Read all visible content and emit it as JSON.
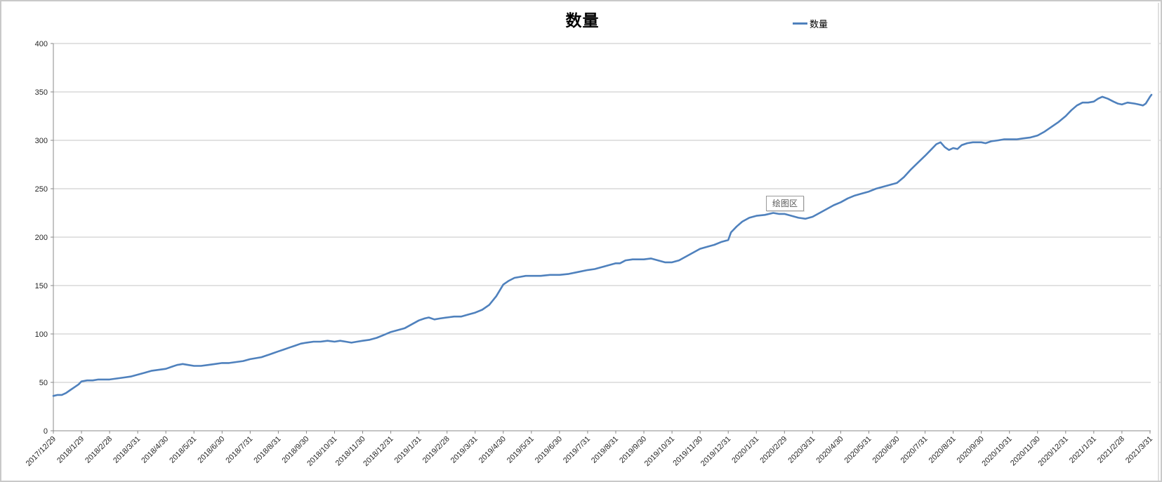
{
  "header": {
    "title": "数量"
  },
  "legend": {
    "label": "数量"
  },
  "tooltip": {
    "label": "绘图区"
  },
  "colors": {
    "line": "#4f81bd",
    "gridline": "#c6c6c6",
    "axis": "#898989",
    "tick_text": "#262626",
    "border": "#c9c9c9",
    "tooltip_text": "#595959"
  },
  "chart_data": {
    "type": "line",
    "title": "数量",
    "legend_entries": [
      "数量"
    ],
    "legend_position": "top-right",
    "grid": true,
    "ylim": [
      0,
      400
    ],
    "y_ticks": [
      0,
      50,
      100,
      150,
      200,
      250,
      300,
      350,
      400
    ],
    "x_tick_labels": [
      "2017/12/29",
      "2018/1/29",
      "2018/2/28",
      "2018/3/31",
      "2018/4/30",
      "2018/5/31",
      "2018/6/30",
      "2018/7/31",
      "2018/8/31",
      "2018/9/30",
      "2018/10/31",
      "2018/11/30",
      "2018/12/31",
      "2019/1/31",
      "2019/2/28",
      "2019/3/31",
      "2019/4/30",
      "2019/5/31",
      "2019/6/30",
      "2019/7/31",
      "2019/8/31",
      "2019/9/30",
      "2019/10/31",
      "2019/11/30",
      "2019/12/31",
      "2020/1/31",
      "2020/2/29",
      "2020/3/31",
      "2020/4/30",
      "2020/5/31",
      "2020/6/30",
      "2020/7/31",
      "2020/8/31",
      "2020/9/30",
      "2020/10/31",
      "2020/11/30",
      "2020/12/31",
      "2021/1/31",
      "2021/2/28",
      "2021/3/31"
    ],
    "series": [
      {
        "name": "数量",
        "monthly_values": [
          36,
          51,
          53,
          58,
          64,
          67,
          70,
          74,
          82,
          91,
          92,
          93,
          102,
          114,
          117,
          122,
          151,
          160,
          161,
          166,
          173,
          177,
          174,
          188,
          197,
          222,
          224,
          221,
          236,
          247,
          256,
          284,
          292,
          298,
          301,
          305,
          325,
          340,
          337,
          345
        ],
        "sampled_points": [
          [
            0,
            36
          ],
          [
            0.15,
            37
          ],
          [
            0.3,
            37
          ],
          [
            0.45,
            39
          ],
          [
            0.6,
            42
          ],
          [
            0.75,
            45
          ],
          [
            0.9,
            48
          ],
          [
            1,
            51
          ],
          [
            1.2,
            52
          ],
          [
            1.4,
            52
          ],
          [
            1.6,
            53
          ],
          [
            1.8,
            53
          ],
          [
            2,
            53
          ],
          [
            2.25,
            54
          ],
          [
            2.5,
            55
          ],
          [
            2.75,
            56
          ],
          [
            3,
            58
          ],
          [
            3.25,
            60
          ],
          [
            3.5,
            62
          ],
          [
            3.75,
            63
          ],
          [
            4,
            64
          ],
          [
            4.2,
            66
          ],
          [
            4.4,
            68
          ],
          [
            4.6,
            69
          ],
          [
            4.8,
            68
          ],
          [
            5,
            67
          ],
          [
            5.25,
            67
          ],
          [
            5.5,
            68
          ],
          [
            5.75,
            69
          ],
          [
            6,
            70
          ],
          [
            6.25,
            70
          ],
          [
            6.5,
            71
          ],
          [
            6.75,
            72
          ],
          [
            7,
            74
          ],
          [
            7.2,
            75
          ],
          [
            7.4,
            76
          ],
          [
            7.6,
            78
          ],
          [
            7.8,
            80
          ],
          [
            8,
            82
          ],
          [
            8.2,
            84
          ],
          [
            8.4,
            86
          ],
          [
            8.6,
            88
          ],
          [
            8.8,
            90
          ],
          [
            9,
            91
          ],
          [
            9.25,
            92
          ],
          [
            9.5,
            92
          ],
          [
            9.75,
            93
          ],
          [
            10,
            92
          ],
          [
            10.2,
            93
          ],
          [
            10.4,
            92
          ],
          [
            10.6,
            91
          ],
          [
            10.8,
            92
          ],
          [
            11,
            93
          ],
          [
            11.25,
            94
          ],
          [
            11.5,
            96
          ],
          [
            11.75,
            99
          ],
          [
            12,
            102
          ],
          [
            12.25,
            104
          ],
          [
            12.5,
            106
          ],
          [
            12.75,
            110
          ],
          [
            13,
            114
          ],
          [
            13.2,
            116
          ],
          [
            13.35,
            117
          ],
          [
            13.55,
            115
          ],
          [
            13.75,
            116
          ],
          [
            14,
            117
          ],
          [
            14.25,
            118
          ],
          [
            14.5,
            118
          ],
          [
            14.75,
            120
          ],
          [
            15,
            122
          ],
          [
            15.25,
            125
          ],
          [
            15.5,
            130
          ],
          [
            15.75,
            139
          ],
          [
            16,
            151
          ],
          [
            16.2,
            155
          ],
          [
            16.4,
            158
          ],
          [
            16.6,
            159
          ],
          [
            16.8,
            160
          ],
          [
            17,
            160
          ],
          [
            17.33,
            160
          ],
          [
            17.66,
            161
          ],
          [
            18,
            161
          ],
          [
            18.33,
            162
          ],
          [
            18.66,
            164
          ],
          [
            19,
            166
          ],
          [
            19.25,
            167
          ],
          [
            19.5,
            169
          ],
          [
            19.75,
            171
          ],
          [
            20,
            173
          ],
          [
            20.15,
            173
          ],
          [
            20.35,
            176
          ],
          [
            20.6,
            177
          ],
          [
            20.8,
            177
          ],
          [
            21,
            177
          ],
          [
            21.25,
            178
          ],
          [
            21.5,
            176
          ],
          [
            21.75,
            174
          ],
          [
            22,
            174
          ],
          [
            22.25,
            176
          ],
          [
            22.5,
            180
          ],
          [
            22.75,
            184
          ],
          [
            23,
            188
          ],
          [
            23.25,
            190
          ],
          [
            23.5,
            192
          ],
          [
            23.75,
            195
          ],
          [
            24,
            197
          ],
          [
            24.1,
            205
          ],
          [
            24.3,
            211
          ],
          [
            24.5,
            216
          ],
          [
            24.75,
            220
          ],
          [
            25,
            222
          ],
          [
            25.3,
            223
          ],
          [
            25.6,
            225
          ],
          [
            25.8,
            224
          ],
          [
            26,
            224
          ],
          [
            26.25,
            222
          ],
          [
            26.5,
            220
          ],
          [
            26.75,
            219
          ],
          [
            27,
            221
          ],
          [
            27.25,
            225
          ],
          [
            27.5,
            229
          ],
          [
            27.75,
            233
          ],
          [
            28,
            236
          ],
          [
            28.25,
            240
          ],
          [
            28.5,
            243
          ],
          [
            28.75,
            245
          ],
          [
            29,
            247
          ],
          [
            29.25,
            250
          ],
          [
            29.5,
            252
          ],
          [
            29.75,
            254
          ],
          [
            30,
            256
          ],
          [
            30.25,
            262
          ],
          [
            30.5,
            270
          ],
          [
            30.75,
            277
          ],
          [
            31,
            284
          ],
          [
            31.2,
            290
          ],
          [
            31.4,
            296
          ],
          [
            31.55,
            298
          ],
          [
            31.7,
            293
          ],
          [
            31.85,
            290
          ],
          [
            32,
            292
          ],
          [
            32.15,
            291
          ],
          [
            32.3,
            295
          ],
          [
            32.5,
            297
          ],
          [
            32.7,
            298
          ],
          [
            33,
            298
          ],
          [
            33.15,
            297
          ],
          [
            33.35,
            299
          ],
          [
            33.6,
            300
          ],
          [
            33.8,
            301
          ],
          [
            34,
            301
          ],
          [
            34.25,
            301
          ],
          [
            34.5,
            302
          ],
          [
            34.75,
            303
          ],
          [
            35,
            305
          ],
          [
            35.25,
            309
          ],
          [
            35.5,
            314
          ],
          [
            35.75,
            319
          ],
          [
            36,
            325
          ],
          [
            36.2,
            331
          ],
          [
            36.4,
            336
          ],
          [
            36.6,
            339
          ],
          [
            36.8,
            339
          ],
          [
            37,
            340
          ],
          [
            37.15,
            343
          ],
          [
            37.3,
            345
          ],
          [
            37.5,
            343
          ],
          [
            37.7,
            340
          ],
          [
            37.85,
            338
          ],
          [
            38,
            337
          ],
          [
            38.2,
            339
          ],
          [
            38.45,
            338
          ],
          [
            38.6,
            337
          ],
          [
            38.75,
            336
          ],
          [
            38.85,
            338
          ],
          [
            39,
            345
          ],
          [
            39.05,
            347
          ]
        ]
      }
    ]
  }
}
